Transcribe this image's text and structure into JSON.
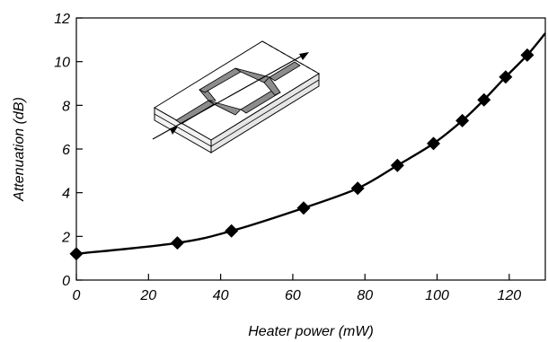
{
  "chart_data": {
    "type": "line",
    "xlabel": "Heater power (mW)",
    "ylabel": "Attenuation (dB)",
    "xlim": [
      0,
      130
    ],
    "ylim": [
      0,
      12
    ],
    "x_ticks": [
      0,
      20,
      40,
      60,
      80,
      100,
      120
    ],
    "y_ticks": [
      0,
      2,
      4,
      6,
      8,
      10,
      12
    ],
    "grid": false,
    "series": [
      {
        "color": "#000000",
        "marker": "diamond",
        "x": [
          0,
          28,
          43,
          63,
          78,
          89,
          99,
          107,
          113,
          119,
          125
        ],
        "y": [
          1.2,
          1.7,
          2.25,
          3.3,
          4.2,
          5.25,
          6.25,
          7.3,
          8.25,
          9.3,
          10.3
        ]
      }
    ],
    "curve": {
      "x": [
        0,
        28,
        43,
        63,
        78,
        89,
        99,
        107,
        113,
        119,
        125,
        130
      ],
      "y": [
        1.2,
        1.7,
        2.25,
        3.3,
        4.2,
        5.25,
        6.25,
        7.3,
        8.25,
        9.3,
        10.3,
        11.3
      ]
    },
    "inset": {
      "icon": "mach-zehnder-interferometer-icon"
    }
  }
}
